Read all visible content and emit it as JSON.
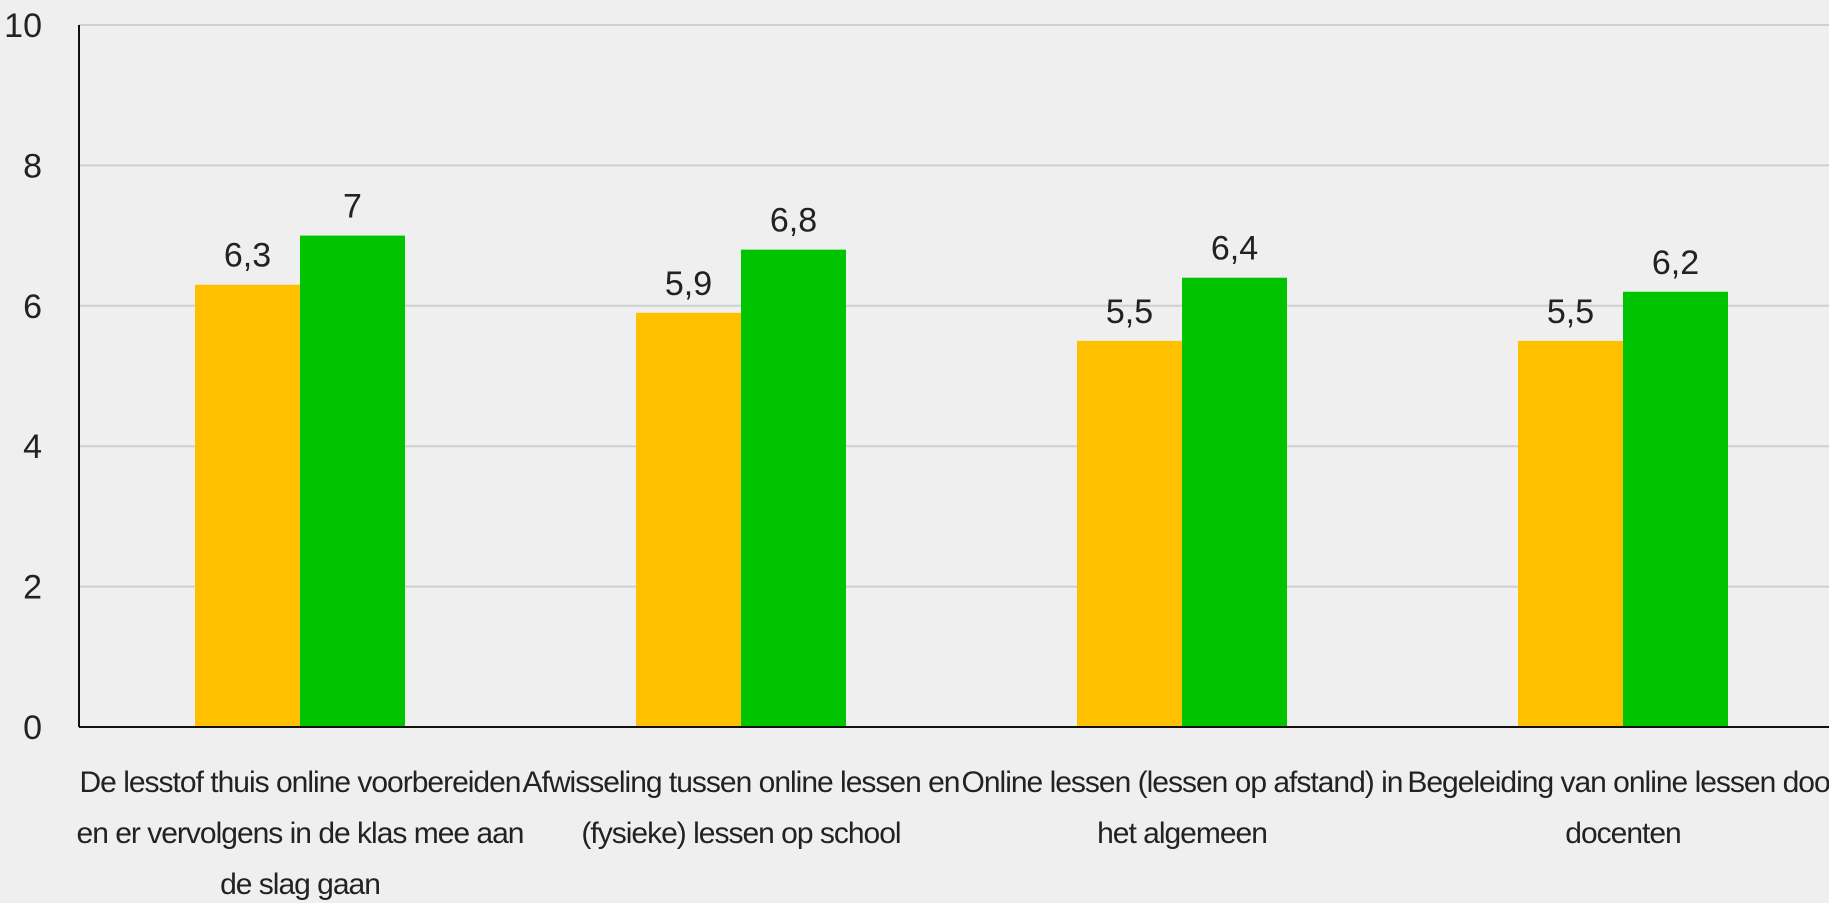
{
  "chart_data": {
    "type": "bar",
    "title": "",
    "xlabel": "",
    "ylabel": "",
    "ylim": [
      0,
      10
    ],
    "yticks": [
      "0",
      "2",
      "4",
      "6",
      "8",
      "10"
    ],
    "grid": true,
    "categories": [
      [
        "De lesstof thuis online voorbereiden",
        "en er vervolgens in de klas mee aan",
        "de slag gaan"
      ],
      [
        "Afwisseling tussen online lessen en",
        "(fysieke) lessen op school"
      ],
      [
        "Online lessen (lessen op afstand) in",
        "het algemeen"
      ],
      [
        "Begeleiding van online lessen door",
        "docenten"
      ]
    ],
    "series": [
      {
        "color": "#ffc000",
        "values": [
          6.3,
          5.9,
          5.5,
          5.5
        ],
        "labels": [
          "6,3",
          "5,9",
          "5,5",
          "5,5"
        ]
      },
      {
        "color": "#00c400",
        "values": [
          7,
          6.8,
          6.4,
          6.2
        ],
        "labels": [
          "7",
          "6,8",
          "6,4",
          "6,2"
        ]
      }
    ]
  }
}
